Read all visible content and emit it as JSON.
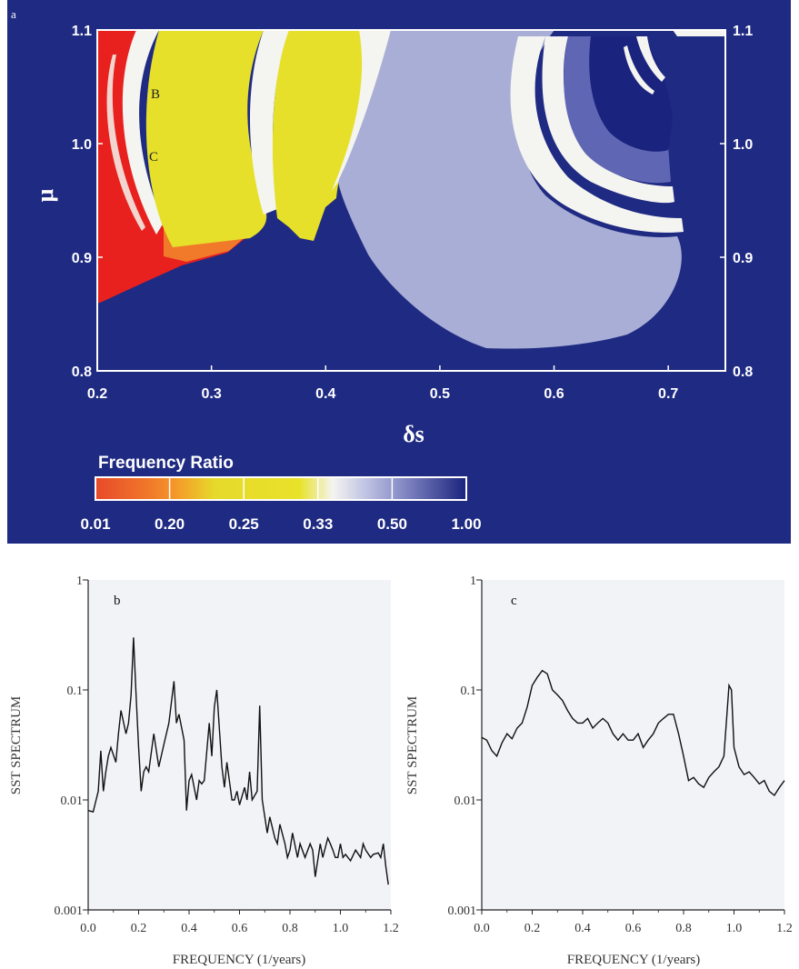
{
  "panel_a": {
    "label": "a",
    "annotations": [
      "B",
      "C"
    ],
    "colorbar_title": "Frequency Ratio",
    "colors": {
      "background": "#1f2a82",
      "red": "#e8211f",
      "orange": "#f07a2a",
      "yellow": "#e6e02a",
      "white": "#f4f4f0",
      "lavender": "#a9aed6",
      "mid_blue": "#5f67b4",
      "dark_blue": "#1a237e"
    }
  },
  "panel_b": {
    "label": "b"
  },
  "panel_c": {
    "label": "c"
  },
  "chart_data": [
    {
      "type": "heatmap",
      "xlabel": "δs",
      "ylabel": "μ",
      "xlim": [
        0.2,
        0.75
      ],
      "ylim": [
        0.8,
        1.1
      ],
      "x_ticks": [
        "0.2",
        "0.3",
        "0.4",
        "0.5",
        "0.6",
        "0.7"
      ],
      "y_ticks": [
        "0.8",
        "0.9",
        "1.0",
        "1.1"
      ],
      "colorbar": {
        "title": "Frequency Ratio",
        "tick_labels": [
          "0.01",
          "0.20",
          "0.25",
          "0.33",
          "0.50",
          "1.00"
        ]
      }
    },
    {
      "type": "line",
      "xlabel": "FREQUENCY (1/years)",
      "ylabel": "SST SPECTRUM",
      "y_scale": "log",
      "xlim": [
        0,
        1.2
      ],
      "ylim": [
        0.001,
        1
      ],
      "x_ticks": [
        "0.0",
        "0.2",
        "0.4",
        "0.6",
        "0.8",
        "1.0",
        "1.2"
      ],
      "y_ticks": [
        "0.001",
        "0.01",
        "0.1",
        "1"
      ],
      "series": [
        {
          "x": [
            0.0,
            0.02,
            0.04,
            0.05,
            0.06,
            0.07,
            0.08,
            0.09,
            0.11,
            0.12,
            0.13,
            0.15,
            0.16,
            0.17,
            0.18,
            0.19,
            0.2,
            0.21,
            0.22,
            0.23,
            0.24,
            0.26,
            0.28,
            0.3,
            0.32,
            0.34,
            0.35,
            0.36,
            0.38,
            0.39,
            0.4,
            0.41,
            0.43,
            0.44,
            0.45,
            0.46,
            0.48,
            0.49,
            0.5,
            0.51,
            0.53,
            0.54,
            0.55,
            0.57,
            0.58,
            0.59,
            0.6,
            0.62,
            0.63,
            0.64,
            0.65,
            0.67,
            0.68,
            0.69,
            0.71,
            0.72,
            0.74,
            0.75,
            0.76,
            0.78,
            0.79,
            0.8,
            0.81,
            0.83,
            0.84,
            0.86,
            0.88,
            0.89,
            0.9,
            0.92,
            0.93,
            0.95,
            0.96,
            0.97,
            0.98,
            0.99,
            1.0,
            1.01,
            1.02,
            1.04,
            1.06,
            1.08,
            1.09,
            1.1,
            1.12,
            1.13,
            1.15,
            1.16,
            1.17,
            1.18,
            1.19
          ],
          "values": [
            0.008,
            0.0078,
            0.012,
            0.028,
            0.012,
            0.018,
            0.025,
            0.03,
            0.022,
            0.04,
            0.065,
            0.04,
            0.05,
            0.09,
            0.3,
            0.09,
            0.03,
            0.012,
            0.018,
            0.02,
            0.018,
            0.04,
            0.02,
            0.032,
            0.05,
            0.12,
            0.05,
            0.06,
            0.035,
            0.008,
            0.015,
            0.017,
            0.01,
            0.015,
            0.014,
            0.015,
            0.05,
            0.025,
            0.07,
            0.1,
            0.02,
            0.013,
            0.022,
            0.01,
            0.01,
            0.012,
            0.009,
            0.013,
            0.01,
            0.018,
            0.01,
            0.012,
            0.072,
            0.01,
            0.005,
            0.007,
            0.0045,
            0.004,
            0.006,
            0.004,
            0.003,
            0.0035,
            0.005,
            0.003,
            0.004,
            0.003,
            0.004,
            0.0035,
            0.002,
            0.004,
            0.003,
            0.0045,
            0.004,
            0.0035,
            0.003,
            0.003,
            0.004,
            0.003,
            0.0032,
            0.0028,
            0.0035,
            0.003,
            0.004,
            0.0035,
            0.003,
            0.0032,
            0.0033,
            0.003,
            0.004,
            0.0025,
            0.0017
          ]
        }
      ]
    },
    {
      "type": "line",
      "xlabel": "FREQUENCY (1/years)",
      "ylabel": "SST SPECTRUM",
      "y_scale": "log",
      "xlim": [
        0,
        1.2
      ],
      "ylim": [
        0.001,
        1
      ],
      "x_ticks": [
        "0.0",
        "0.2",
        "0.4",
        "0.6",
        "0.8",
        "1.0",
        "1.2"
      ],
      "y_ticks": [
        "0.001",
        "0.01",
        "0.1",
        "1"
      ],
      "series": [
        {
          "x": [
            0.0,
            0.02,
            0.04,
            0.06,
            0.08,
            0.1,
            0.12,
            0.14,
            0.16,
            0.18,
            0.2,
            0.22,
            0.24,
            0.26,
            0.28,
            0.3,
            0.32,
            0.34,
            0.36,
            0.38,
            0.4,
            0.42,
            0.44,
            0.46,
            0.48,
            0.5,
            0.52,
            0.54,
            0.56,
            0.58,
            0.6,
            0.62,
            0.64,
            0.66,
            0.68,
            0.7,
            0.72,
            0.74,
            0.76,
            0.78,
            0.8,
            0.82,
            0.84,
            0.86,
            0.88,
            0.9,
            0.92,
            0.94,
            0.96,
            0.98,
            0.99,
            1.0,
            1.02,
            1.04,
            1.06,
            1.08,
            1.1,
            1.12,
            1.14,
            1.16,
            1.18,
            1.2
          ],
          "values": [
            0.037,
            0.035,
            0.028,
            0.025,
            0.033,
            0.04,
            0.036,
            0.045,
            0.05,
            0.07,
            0.11,
            0.13,
            0.15,
            0.14,
            0.1,
            0.09,
            0.08,
            0.065,
            0.055,
            0.05,
            0.05,
            0.055,
            0.045,
            0.05,
            0.055,
            0.05,
            0.04,
            0.035,
            0.04,
            0.035,
            0.035,
            0.04,
            0.03,
            0.035,
            0.04,
            0.05,
            0.055,
            0.06,
            0.06,
            0.04,
            0.025,
            0.015,
            0.016,
            0.014,
            0.013,
            0.016,
            0.018,
            0.02,
            0.025,
            0.11,
            0.1,
            0.03,
            0.02,
            0.017,
            0.018,
            0.016,
            0.014,
            0.015,
            0.012,
            0.011,
            0.013,
            0.015
          ]
        }
      ]
    }
  ]
}
